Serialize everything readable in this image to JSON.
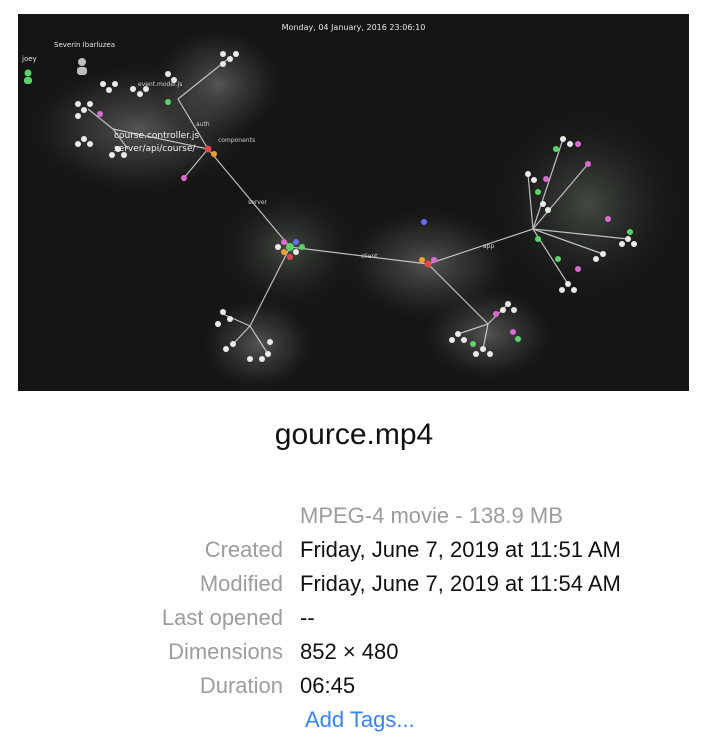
{
  "preview": {
    "timestamp": "Monday, 04 January, 2016 23:06:10",
    "user_primary": "Severin Ibarluzea",
    "user_secondary": "joey",
    "overlay_lines": [
      "course.controller.js",
      "server/api/course/"
    ],
    "node_labels": [
      "components",
      "server",
      "event.model.js",
      "auth",
      "client",
      "app"
    ],
    "colors": {
      "background": "#141514",
      "edge": "#d9d9d9",
      "node_white": "#eaeaea",
      "node_pink": "#d96bd2",
      "node_green": "#5bd36b",
      "node_red": "#e0474c",
      "node_orange": "#f0a030",
      "node_blue": "#6a6cf2"
    }
  },
  "file": {
    "name": "gource.mp4",
    "kind": "MPEG-4 movie - 138.9 MB"
  },
  "meta": {
    "created_label": "Created",
    "created_value": "Friday, June 7, 2019 at 11:51 AM",
    "modified_label": "Modified",
    "modified_value": "Friday, June 7, 2019 at 11:54 AM",
    "last_opened_label": "Last opened",
    "last_opened_value": "--",
    "dimensions_label": "Dimensions",
    "dimensions_value": "852 × 480",
    "duration_label": "Duration",
    "duration_value": "06:45"
  },
  "actions": {
    "add_tags": "Add Tags..."
  }
}
